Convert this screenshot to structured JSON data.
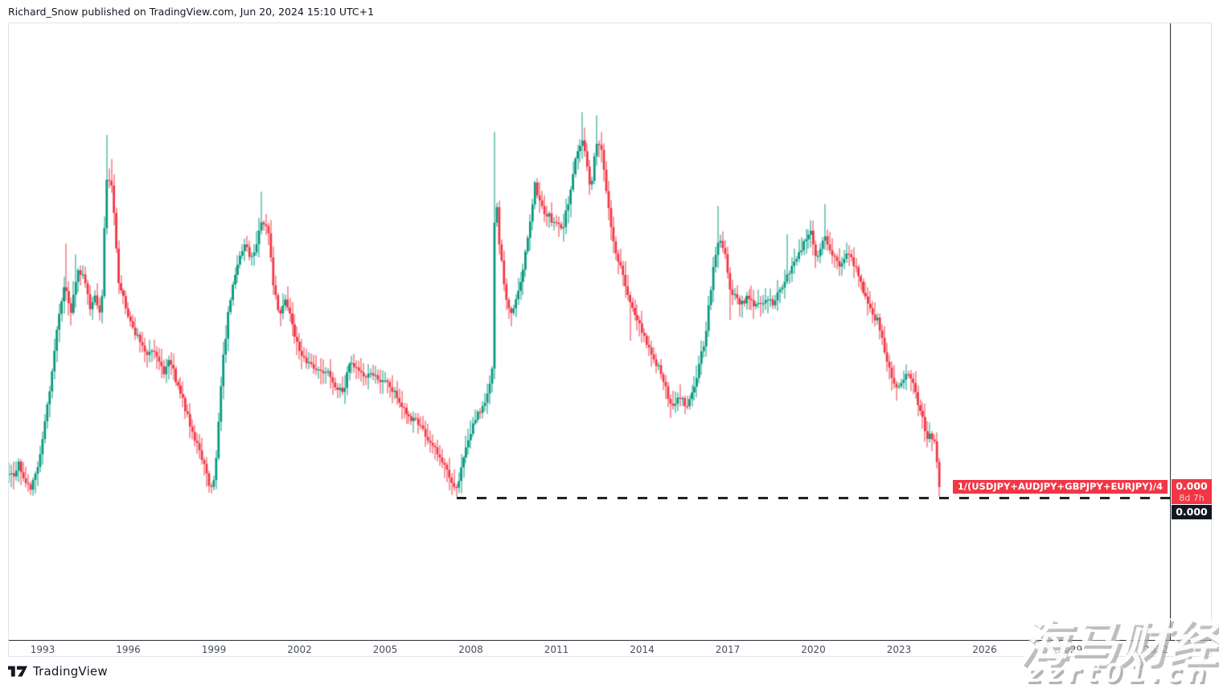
{
  "header": {
    "attribution": "Richard_Snow published on TradingView.com, Jun 20, 2024 15:10 UTC+1"
  },
  "footer": {
    "brand": "TradingView"
  },
  "watermark": {
    "line1": "海马财经",
    "line2": "zzrt01.cn"
  },
  "symbol_label": "1/(USDJPY+AUDJPY+GBPJPY+EURJPY)/4",
  "price_axis": {
    "last_price": "0.000",
    "countdown": "8d 7h",
    "close_price": "0.000"
  },
  "colors": {
    "up": "#089981",
    "down": "#F23645",
    "label_red": "#F23645",
    "label_dark": "#131722",
    "axis_line": "#2A2E39",
    "support_line": "#1E222D",
    "border": "#E0E3EB",
    "tick_text": "#4A4E59"
  },
  "chart_data": {
    "type": "candlestick",
    "title": "1/(USDJPY+AUDJPY+GBPJPY+EURJPY)/4",
    "timeframe": "monthly",
    "x_ticks": [
      1993,
      1996,
      1999,
      2002,
      2005,
      2008,
      2011,
      2014,
      2017,
      2020,
      2023,
      2026,
      2029,
      2032
    ],
    "x_range": [
      1991.8,
      2032.6
    ],
    "t_start": 1991.83,
    "t_end": 2024.43,
    "ylabel": "",
    "y_axis_visible_labels": [
      "0.000",
      "0.000"
    ],
    "y_unit": "percent of plot height (0 = plot bottom, 100 = plot top); price axis is unlabeled, values round to 0.000",
    "grid": false,
    "legend": "none",
    "last_price": "0.000",
    "bar_countdown": "8d 7h",
    "support_line": {
      "style": "dashed",
      "color": "#1E222D",
      "start_t": 2007.5,
      "end_t": 2032.6,
      "level": 23.1
    },
    "anchors": [
      [
        1991.83,
        27.4
      ],
      [
        1992.0,
        26.0
      ],
      [
        1992.17,
        28.5
      ],
      [
        1992.42,
        25.5
      ],
      [
        1992.58,
        24.9
      ],
      [
        1992.75,
        26.7
      ],
      [
        1993.0,
        32.6
      ],
      [
        1993.25,
        41.0
      ],
      [
        1993.55,
        52.0
      ],
      [
        1993.8,
        58.0
      ],
      [
        1994.0,
        52.5
      ],
      [
        1994.2,
        60.0
      ],
      [
        1994.45,
        58.5
      ],
      [
        1994.65,
        54.0
      ],
      [
        1994.85,
        56.0
      ],
      [
        1995.05,
        52.0
      ],
      [
        1995.22,
        75.0
      ],
      [
        1995.45,
        73.0
      ],
      [
        1995.65,
        58.7
      ],
      [
        1995.9,
        54.0
      ],
      [
        1996.15,
        50.5
      ],
      [
        1996.4,
        48.9
      ],
      [
        1996.65,
        46.3
      ],
      [
        1996.85,
        47.6
      ],
      [
        1997.05,
        45.5
      ],
      [
        1997.25,
        43.0
      ],
      [
        1997.45,
        45.6
      ],
      [
        1997.7,
        41.5
      ],
      [
        1997.9,
        39.1
      ],
      [
        1998.1,
        35.9
      ],
      [
        1998.35,
        32.6
      ],
      [
        1998.6,
        29.3
      ],
      [
        1998.8,
        25.8
      ],
      [
        1998.95,
        24.4
      ],
      [
        1999.1,
        30.6
      ],
      [
        1999.3,
        45.0
      ],
      [
        1999.5,
        52.8
      ],
      [
        1999.7,
        58.0
      ],
      [
        1999.9,
        61.9
      ],
      [
        2000.1,
        63.9
      ],
      [
        2000.3,
        61.9
      ],
      [
        2000.5,
        64.5
      ],
      [
        2000.7,
        68.4
      ],
      [
        2000.9,
        66.5
      ],
      [
        2001.1,
        56.7
      ],
      [
        2001.3,
        52.8
      ],
      [
        2001.5,
        55.4
      ],
      [
        2001.7,
        52.2
      ],
      [
        2001.9,
        48.0
      ],
      [
        2002.05,
        45.6
      ],
      [
        2002.3,
        45.0
      ],
      [
        2002.6,
        44.3
      ],
      [
        2002.9,
        43.7
      ],
      [
        2003.2,
        41.7
      ],
      [
        2003.5,
        39.8
      ],
      [
        2003.75,
        45.0
      ],
      [
        2004.0,
        43.7
      ],
      [
        2004.4,
        43.0
      ],
      [
        2004.8,
        42.4
      ],
      [
        2005.2,
        41.1
      ],
      [
        2005.5,
        38.5
      ],
      [
        2005.8,
        36.5
      ],
      [
        2006.1,
        35.2
      ],
      [
        2006.4,
        33.2
      ],
      [
        2006.7,
        31.3
      ],
      [
        2007.0,
        28.7
      ],
      [
        2007.3,
        26.1
      ],
      [
        2007.5,
        24.5
      ],
      [
        2007.7,
        28.7
      ],
      [
        2007.95,
        33.5
      ],
      [
        2008.2,
        36.0
      ],
      [
        2008.45,
        38.5
      ],
      [
        2008.65,
        41.0
      ],
      [
        2008.75,
        43.7
      ],
      [
        2008.85,
        74.1
      ],
      [
        2009.0,
        64.5
      ],
      [
        2009.2,
        56.3
      ],
      [
        2009.4,
        52.8
      ],
      [
        2009.65,
        56.0
      ],
      [
        2009.85,
        60.6
      ],
      [
        2010.05,
        67.1
      ],
      [
        2010.25,
        73.7
      ],
      [
        2010.45,
        70.4
      ],
      [
        2010.7,
        69.0
      ],
      [
        2010.95,
        67.5
      ],
      [
        2011.2,
        66.5
      ],
      [
        2011.45,
        72.0
      ],
      [
        2011.65,
        78.0
      ],
      [
        2011.9,
        81.5
      ],
      [
        2012.05,
        77.6
      ],
      [
        2012.2,
        72.4
      ],
      [
        2012.4,
        81.0
      ],
      [
        2012.6,
        78.9
      ],
      [
        2012.8,
        71.1
      ],
      [
        2013.0,
        64.5
      ],
      [
        2013.3,
        59.3
      ],
      [
        2013.6,
        54.1
      ],
      [
        2013.9,
        51.5
      ],
      [
        2014.2,
        47.6
      ],
      [
        2014.5,
        45.0
      ],
      [
        2014.8,
        41.1
      ],
      [
        2015.0,
        37.8
      ],
      [
        2015.3,
        39.8
      ],
      [
        2015.6,
        37.8
      ],
      [
        2015.9,
        42.4
      ],
      [
        2016.2,
        48.9
      ],
      [
        2016.5,
        60.6
      ],
      [
        2016.7,
        65.8
      ],
      [
        2016.9,
        63.2
      ],
      [
        2017.1,
        56.7
      ],
      [
        2017.4,
        54.8
      ],
      [
        2017.7,
        55.4
      ],
      [
        2018.0,
        54.1
      ],
      [
        2018.3,
        55.4
      ],
      [
        2018.6,
        54.8
      ],
      [
        2018.9,
        57.4
      ],
      [
        2019.1,
        59.3
      ],
      [
        2019.4,
        61.9
      ],
      [
        2019.7,
        64.5
      ],
      [
        2019.9,
        66.5
      ],
      [
        2020.1,
        61.9
      ],
      [
        2020.4,
        65.2
      ],
      [
        2020.6,
        63.2
      ],
      [
        2020.9,
        60.6
      ],
      [
        2021.1,
        61.9
      ],
      [
        2021.3,
        62.6
      ],
      [
        2021.6,
        58.7
      ],
      [
        2021.9,
        54.8
      ],
      [
        2022.1,
        52.8
      ],
      [
        2022.3,
        51.5
      ],
      [
        2022.5,
        46.3
      ],
      [
        2022.7,
        43.0
      ],
      [
        2022.9,
        41.1
      ],
      [
        2023.1,
        41.7
      ],
      [
        2023.3,
        43.0
      ],
      [
        2023.5,
        41.1
      ],
      [
        2023.7,
        37.8
      ],
      [
        2023.9,
        34.6
      ],
      [
        2024.0,
        32.6
      ],
      [
        2024.1,
        33.2
      ],
      [
        2024.25,
        31.9
      ],
      [
        2024.42,
        25.0
      ]
    ],
    "notable_wicks": [
      {
        "t": 1993.8,
        "hi": 64.3
      },
      {
        "t": 1994.2,
        "hi": 62.5
      },
      {
        "t": 1995.22,
        "hi": 81.9
      },
      {
        "t": 1995.45,
        "hi": 78.0
      },
      {
        "t": 1998.95,
        "lo": 24.0
      },
      {
        "t": 2000.7,
        "hi": 72.7
      },
      {
        "t": 2007.5,
        "lo": 23.2
      },
      {
        "t": 2008.85,
        "hi": 82.4
      },
      {
        "t": 2011.9,
        "hi": 85.6
      },
      {
        "t": 2012.4,
        "hi": 85.1
      },
      {
        "t": 2013.6,
        "lo": 48.5
      },
      {
        "t": 2015.0,
        "lo": 36.0
      },
      {
        "t": 2016.7,
        "hi": 70.4
      },
      {
        "t": 2017.1,
        "lo": 51.9
      },
      {
        "t": 2019.1,
        "hi": 65.8
      },
      {
        "t": 2020.4,
        "hi": 70.7
      },
      {
        "t": 2024.42,
        "lo": 23.9
      }
    ]
  }
}
